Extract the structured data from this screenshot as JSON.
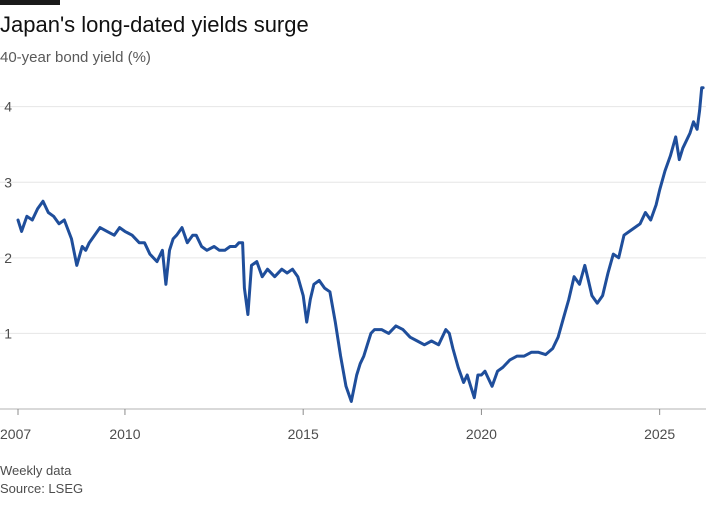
{
  "header": {
    "title": "Japan's long-dated yields surge",
    "subtitle": "40-year bond yield (%)"
  },
  "footer": {
    "note": "Weekly data",
    "source": "Source: LSEG"
  },
  "chart_data": {
    "type": "line",
    "title": "Japan's long-dated yields surge",
    "subtitle": "40-year bond yield (%)",
    "xlabel": "",
    "ylabel": "",
    "xlim": [
      2007.0,
      2026.3
    ],
    "ylim": [
      0,
      4.3
    ],
    "y_ticks": [
      1,
      2,
      3,
      4
    ],
    "x_ticks": [
      2007,
      2010,
      2015,
      2020,
      2025
    ],
    "grid": "horizontal",
    "legend": "none",
    "line_color": "#1f4e9b",
    "series": [
      {
        "x": [
          2007.0,
          2007.1,
          2007.25,
          2007.4,
          2007.55,
          2007.7,
          2007.85,
          2008.0,
          2008.15,
          2008.3,
          2008.5,
          2008.65,
          2008.8,
          2008.9,
          2009.0,
          2009.15,
          2009.3,
          2009.5,
          2009.7,
          2009.85,
          2010.0,
          2010.2,
          2010.4,
          2010.55,
          2010.7,
          2010.9,
          2011.05,
          2011.15,
          2011.25,
          2011.35,
          2011.45,
          2011.6,
          2011.75,
          2011.9,
          2012.0,
          2012.15,
          2012.3,
          2012.5,
          2012.65,
          2012.8,
          2012.95,
          2013.1,
          2013.2,
          2013.3,
          2013.35,
          2013.45,
          2013.55,
          2013.7,
          2013.85,
          2014.0,
          2014.2,
          2014.4,
          2014.55,
          2014.7,
          2014.85,
          2015.0,
          2015.1,
          2015.2,
          2015.3,
          2015.45,
          2015.6,
          2015.75,
          2015.9,
          2016.05,
          2016.2,
          2016.35,
          2016.5,
          2016.6,
          2016.7,
          2016.8,
          2016.9,
          2017.0,
          2017.2,
          2017.4,
          2017.6,
          2017.8,
          2018.0,
          2018.2,
          2018.4,
          2018.6,
          2018.8,
          2019.0,
          2019.1,
          2019.2,
          2019.35,
          2019.5,
          2019.6,
          2019.7,
          2019.8,
          2019.9,
          2020.0,
          2020.1,
          2020.2,
          2020.3,
          2020.45,
          2020.6,
          2020.8,
          2021.0,
          2021.2,
          2021.4,
          2021.6,
          2021.8,
          2022.0,
          2022.15,
          2022.3,
          2022.45,
          2022.6,
          2022.75,
          2022.9,
          2023.0,
          2023.1,
          2023.25,
          2023.4,
          2023.55,
          2023.7,
          2023.85,
          2024.0,
          2024.15,
          2024.3,
          2024.45,
          2024.6,
          2024.75,
          2024.9,
          2025.0,
          2025.15,
          2025.3,
          2025.45,
          2025.55,
          2025.65,
          2025.75,
          2025.85,
          2025.95,
          2026.05,
          2026.12,
          2026.18,
          2026.22
        ],
        "values": [
          2.5,
          2.35,
          2.55,
          2.5,
          2.65,
          2.75,
          2.6,
          2.55,
          2.45,
          2.5,
          2.25,
          1.9,
          2.15,
          2.1,
          2.2,
          2.3,
          2.4,
          2.35,
          2.3,
          2.4,
          2.35,
          2.3,
          2.2,
          2.2,
          2.05,
          1.95,
          2.1,
          1.65,
          2.1,
          2.25,
          2.3,
          2.4,
          2.2,
          2.3,
          2.3,
          2.15,
          2.1,
          2.15,
          2.1,
          2.1,
          2.15,
          2.15,
          2.2,
          2.2,
          1.6,
          1.25,
          1.9,
          1.95,
          1.75,
          1.85,
          1.75,
          1.85,
          1.8,
          1.85,
          1.75,
          1.5,
          1.15,
          1.45,
          1.65,
          1.7,
          1.6,
          1.55,
          1.15,
          0.7,
          0.3,
          0.1,
          0.45,
          0.6,
          0.7,
          0.85,
          1.0,
          1.05,
          1.05,
          1.0,
          1.1,
          1.05,
          0.95,
          0.9,
          0.85,
          0.9,
          0.85,
          1.05,
          1.0,
          0.8,
          0.55,
          0.35,
          0.45,
          0.3,
          0.15,
          0.45,
          0.45,
          0.5,
          0.4,
          0.3,
          0.5,
          0.55,
          0.65,
          0.7,
          0.7,
          0.75,
          0.75,
          0.72,
          0.8,
          0.95,
          1.2,
          1.45,
          1.75,
          1.65,
          1.9,
          1.7,
          1.5,
          1.4,
          1.5,
          1.8,
          2.05,
          2.0,
          2.3,
          2.35,
          2.4,
          2.45,
          2.6,
          2.5,
          2.7,
          2.9,
          3.15,
          3.35,
          3.6,
          3.3,
          3.45,
          3.55,
          3.65,
          3.8,
          3.7,
          3.95,
          4.25,
          4.25
        ]
      }
    ]
  }
}
